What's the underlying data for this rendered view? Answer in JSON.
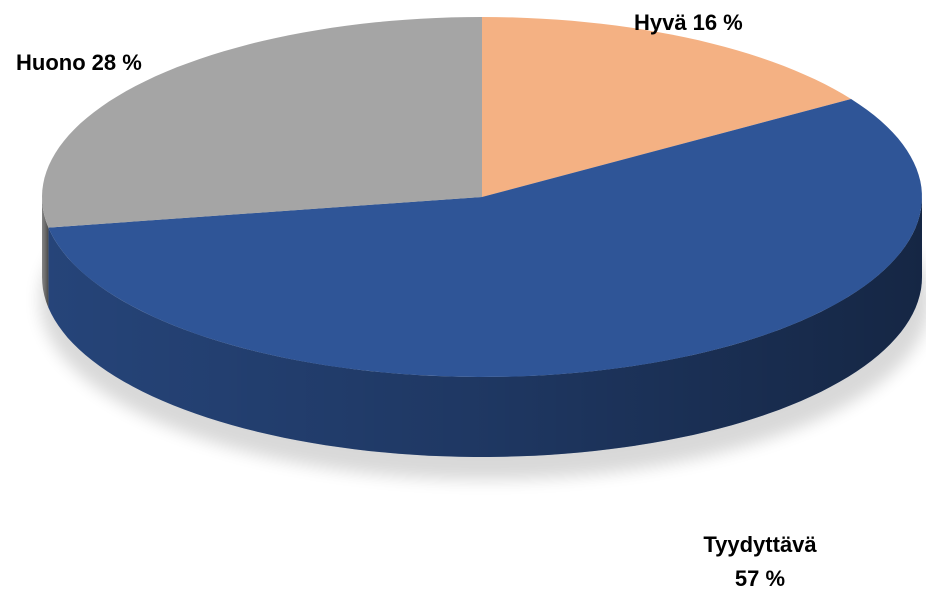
{
  "chart_data": {
    "type": "pie",
    "categories": [
      "Hyvä",
      "Tyydyttävä",
      "Huono"
    ],
    "values": [
      16,
      57,
      28
    ],
    "value_labels": [
      "16 %",
      "57 %",
      "28 %"
    ],
    "colors": [
      "#f4b183",
      "#2f5597",
      "#a5a5a5"
    ]
  }
}
